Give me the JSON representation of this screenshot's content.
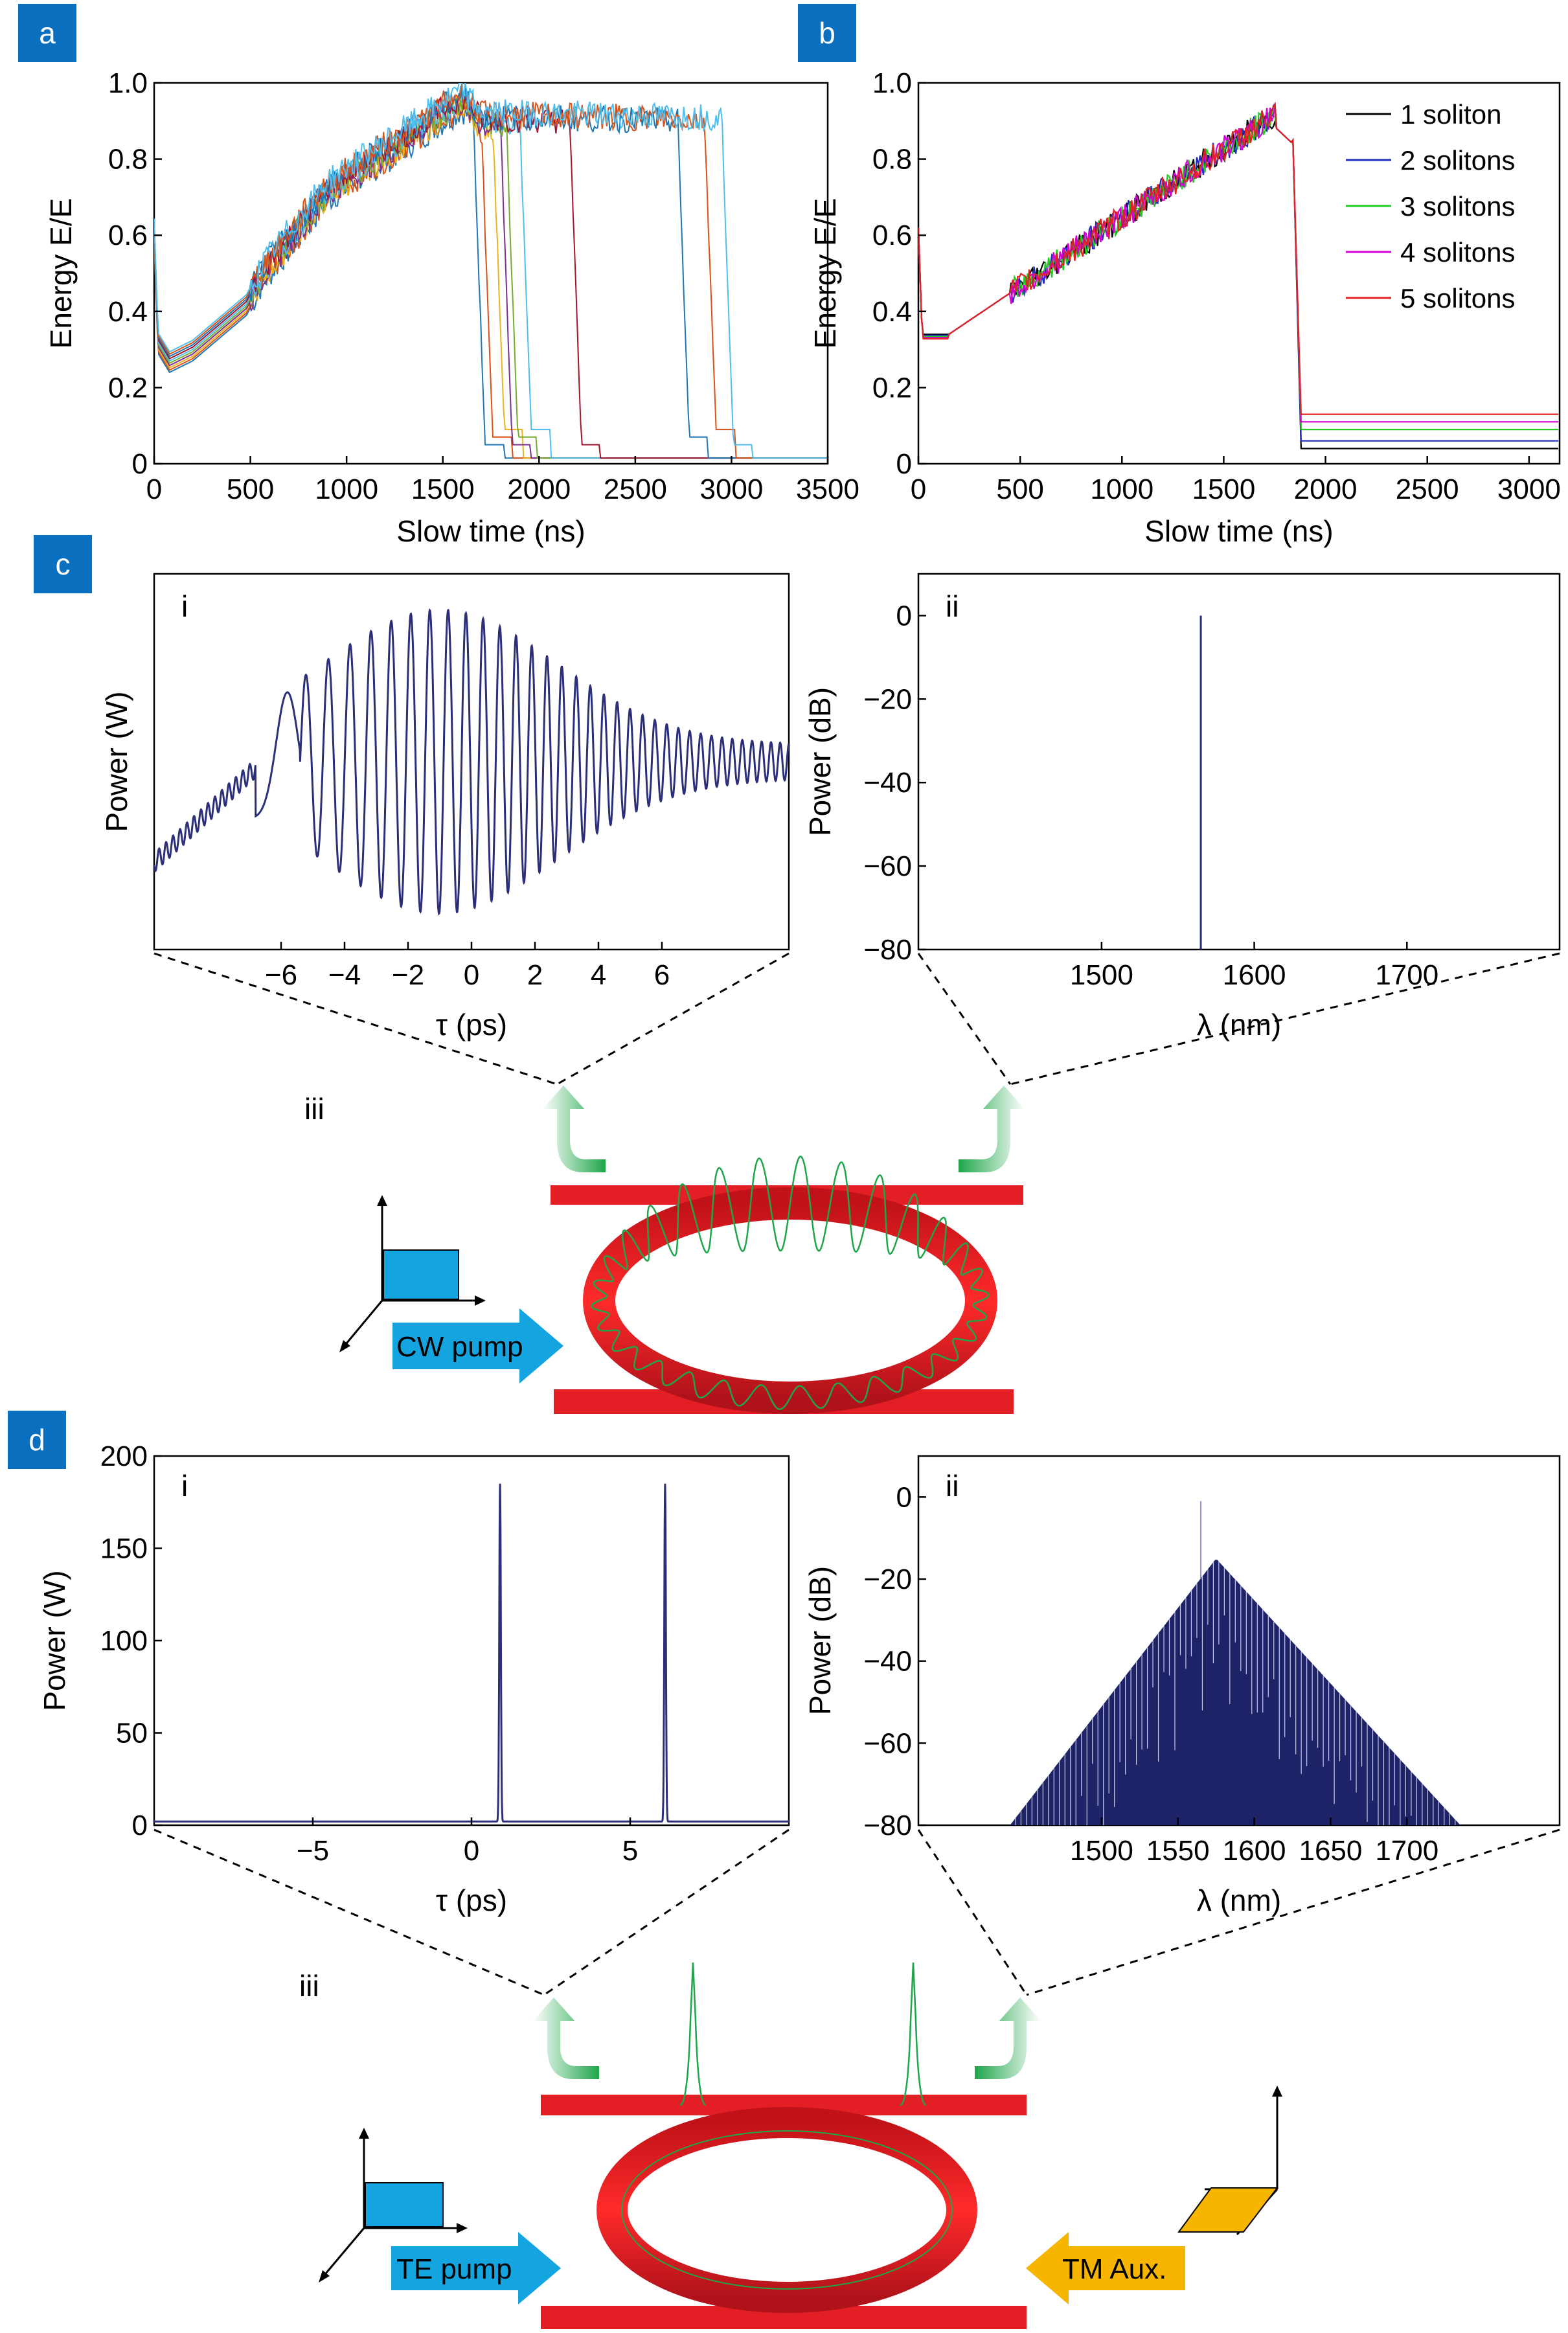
{
  "panels": {
    "a": "a",
    "b": "b",
    "c": "c",
    "d": "d",
    "c_i": "i",
    "c_ii": "ii",
    "c_iii": "iii",
    "d_i": "i",
    "d_ii": "ii",
    "d_iii": "iii"
  },
  "labels": {
    "cw_pump": "CW pump",
    "te_pump": "TE pump",
    "tm_aux": "TM Aux."
  },
  "colors": {
    "ring": "#e31e24",
    "green_arrow": "#1fa64a",
    "blue_arrow": "#14a4e0",
    "orange_arrow": "#f7b500",
    "trace": "#2b2f7a"
  },
  "chart_data": [
    {
      "id": "a",
      "type": "line",
      "xlabel": "Slow time (ns)",
      "ylabel": "Energy E/E",
      "xlim": [
        0,
        3500
      ],
      "ylim": [
        0,
        1.0
      ],
      "xticks": [
        "0",
        "500",
        "1000",
        "1500",
        "2000",
        "2500",
        "3000",
        "3500"
      ],
      "yticks": [
        "0",
        "0.2",
        "0.4",
        "0.6",
        "0.8",
        "1.0"
      ],
      "series_colors": [
        "#1f77b4",
        "#d95319",
        "#edb120",
        "#7e2f8e",
        "#77ac30",
        "#4dbeee",
        "#a2142f",
        "#1f77b4",
        "#d95319",
        "#4dbeee"
      ],
      "drop_times": [
        1660,
        1700,
        1760,
        1800,
        1830,
        1900,
        2160,
        2720,
        2860,
        2950
      ],
      "approx_profile": [
        [
          0,
          0.62
        ],
        [
          20,
          0.32
        ],
        [
          80,
          0.27
        ],
        [
          200,
          0.3
        ],
        [
          480,
          0.42
        ],
        [
          560,
          0.5
        ],
        [
          900,
          0.72
        ],
        [
          1600,
          0.96
        ],
        [
          1700,
          0.9
        ],
        [
          3500,
          0.88
        ]
      ]
    },
    {
      "id": "b",
      "type": "line",
      "xlabel": "Slow time (ns)",
      "ylabel": "Energy E/E",
      "xlim": [
        0,
        3150
      ],
      "ylim": [
        0,
        1.0
      ],
      "xticks": [
        "0",
        "500",
        "1000",
        "1500",
        "2000",
        "2500",
        "3000"
      ],
      "yticks": [
        "0",
        "0.2",
        "0.4",
        "0.6",
        "0.8",
        "1.0"
      ],
      "legend_position": "top-right",
      "series": [
        {
          "name": "1 soliton",
          "color": "#000000",
          "plateau": 0.04
        },
        {
          "name": "2 solitons",
          "color": "#1f2bbf",
          "plateau": 0.06
        },
        {
          "name": "3 solitons",
          "color": "#22cc22",
          "plateau": 0.09
        },
        {
          "name": "4 solitons",
          "color": "#d400d4",
          "plateau": 0.11
        },
        {
          "name": "5 solitons",
          "color": "#e22222",
          "plateau": 0.13
        }
      ],
      "drop_time": 1840
    },
    {
      "id": "c_i",
      "type": "line",
      "xlabel": "τ (ps)",
      "ylabel": "Power (W)",
      "xlim": [
        -10,
        10
      ],
      "xticks": [
        "−6",
        "−4",
        "−2",
        "0",
        "2",
        "4",
        "6"
      ],
      "xtick_values": [
        -6,
        -4,
        -2,
        0,
        2,
        4,
        6
      ],
      "description_values": {
        "oscillation_period_ps": 0.5
      }
    },
    {
      "id": "c_ii",
      "type": "line",
      "xlabel": "λ (nm)",
      "ylabel": "Power (dB)",
      "xlim": [
        1380,
        1800
      ],
      "ylim": [
        -80,
        10
      ],
      "xticks": [
        "1500",
        "1600",
        "1700"
      ],
      "yticks": [
        "0",
        "−20",
        "−40",
        "−60",
        "−80"
      ],
      "line_at": 1565
    },
    {
      "id": "d_i",
      "type": "line",
      "xlabel": "τ (ps)",
      "ylabel": "Power (W)",
      "xlim": [
        -10,
        10
      ],
      "ylim": [
        0,
        200
      ],
      "xticks": [
        "−5",
        "0",
        "5"
      ],
      "xtick_values": [
        -5,
        0,
        5
      ],
      "yticks": [
        "0",
        "50",
        "100",
        "150",
        "200"
      ],
      "peaks": [
        [
          0.9,
          183
        ],
        [
          6.1,
          183
        ]
      ]
    },
    {
      "id": "d_ii",
      "type": "area",
      "xlabel": "λ (nm)",
      "ylabel": "Power (dB)",
      "xlim": [
        1380,
        1800
      ],
      "ylim": [
        -80,
        10
      ],
      "xticks": [
        "1500",
        "1550",
        "1600",
        "1650",
        "1700"
      ],
      "yticks": [
        "0",
        "−20",
        "−40",
        "−60",
        "−80"
      ],
      "peak": [
        1575,
        -15
      ],
      "pump_line": [
        1565,
        -1
      ],
      "edges": [
        1440,
        1735
      ]
    }
  ]
}
